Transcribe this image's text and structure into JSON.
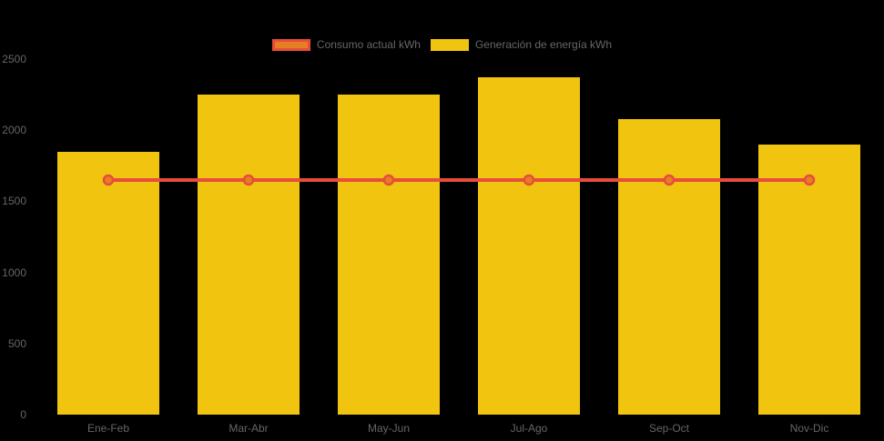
{
  "canvas": {
    "background": "#000000",
    "text_color": "#666666"
  },
  "legend": {
    "position": "top",
    "items": [
      {
        "label": "Consumo actual kWh",
        "fill": "#e67e22",
        "border": "#e74c3c"
      },
      {
        "label": "Generación de energía kWh",
        "fill": "#f1c40f",
        "border": "#f1c40f"
      }
    ]
  },
  "chart_data": {
    "type": "bar",
    "title": "",
    "xlabel": "",
    "ylabel": "",
    "categories": [
      "Ene-Feb",
      "Mar-Abr",
      "May-Jun",
      "Jul-Ago",
      "Sep-Oct",
      "Nov-Dic"
    ],
    "series": [
      {
        "name": "Generación de energía kWh",
        "type": "bar",
        "color": "#f1c40f",
        "values": [
          1850,
          2250,
          2250,
          2370,
          2080,
          1900
        ]
      },
      {
        "name": "Consumo actual kWh",
        "type": "line",
        "color": "#e74c3c",
        "point_fill": "#e67e22",
        "values": [
          1650,
          1650,
          1650,
          1650,
          1650,
          1650
        ]
      }
    ],
    "ylim": [
      0,
      2500
    ],
    "yticks": [
      0,
      500,
      1000,
      1500,
      2000,
      2500
    ],
    "grid": false,
    "legend_position": "top"
  }
}
